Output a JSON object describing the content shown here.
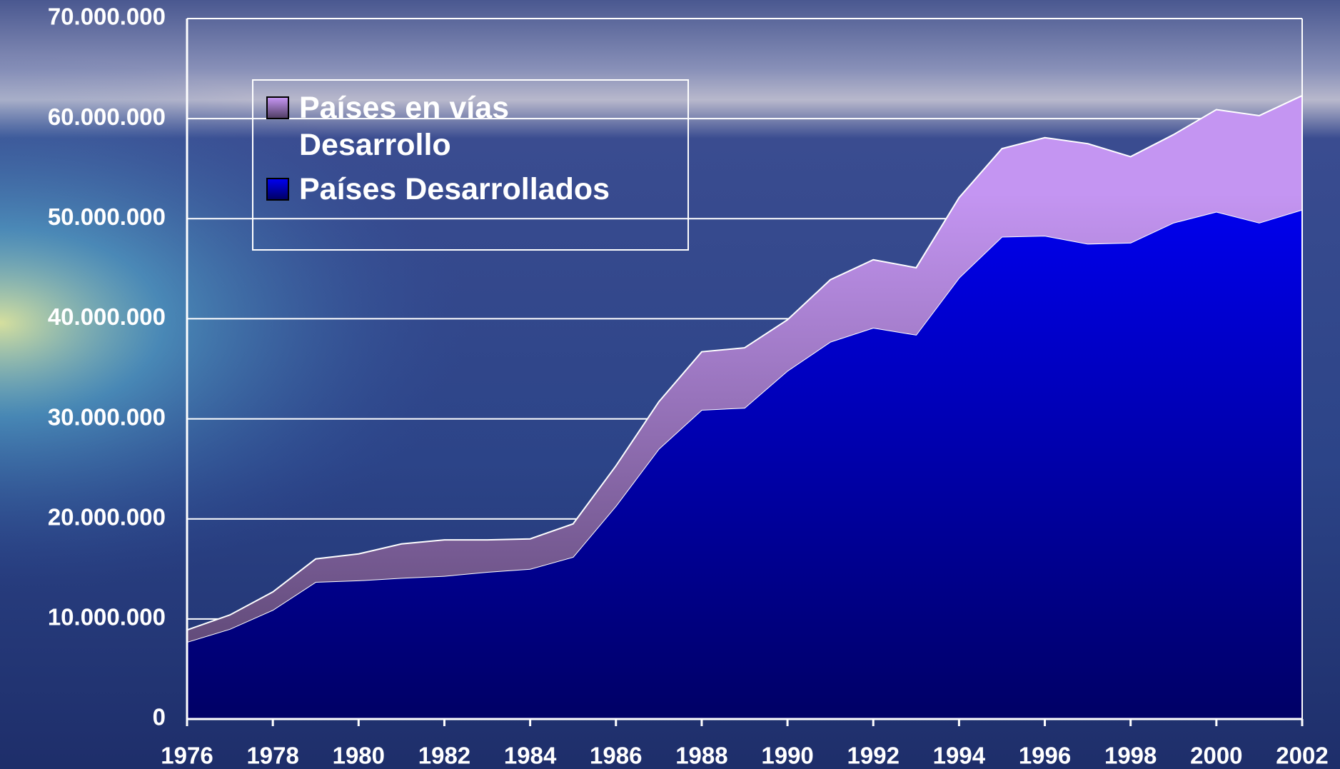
{
  "chart_data": {
    "type": "stacked_area",
    "x": [
      1976,
      1977,
      1978,
      1979,
      1980,
      1981,
      1982,
      1983,
      1984,
      1985,
      1986,
      1987,
      1988,
      1989,
      1990,
      1991,
      1992,
      1993,
      1994,
      1995,
      1996,
      1997,
      1998,
      1999,
      2000,
      2001,
      2002
    ],
    "series": [
      {
        "name": "Países Desarrollados",
        "color": "#0000f0",
        "values": [
          7700000,
          9000000,
          10900000,
          13700000,
          13850000,
          14100000,
          14300000,
          14700000,
          15000000,
          16200000,
          21300000,
          27000000,
          30900000,
          31100000,
          34800000,
          37700000,
          39100000,
          38400000,
          44100000,
          48200000,
          48300000,
          47500000,
          47600000,
          49600000,
          50700000,
          49600000,
          50900000
        ]
      },
      {
        "name": "Países en vías Desarrollo",
        "color": "#c495f2",
        "values": [
          1200000,
          1400000,
          1800000,
          2300000,
          2650000,
          3400000,
          3600000,
          3200000,
          3000000,
          3300000,
          4000000,
          4700000,
          5800000,
          6000000,
          5100000,
          6200000,
          6800000,
          6700000,
          8000000,
          8800000,
          9800000,
          10000000,
          8600000,
          8800000,
          10200000,
          10700000,
          11400000
        ]
      }
    ],
    "xlim": [
      1976,
      2002
    ],
    "xticks": [
      1976,
      1978,
      1980,
      1982,
      1984,
      1986,
      1988,
      1990,
      1992,
      1994,
      1996,
      1998,
      2000,
      2002
    ],
    "ylim": [
      0,
      70000000
    ],
    "yticks": [
      0,
      {
        "value": 10000000,
        "label": "10.000.000"
      },
      {
        "value": 20000000,
        "label": "20.000.000"
      },
      {
        "value": 30000000,
        "label": "30.000.000"
      },
      {
        "value": 40000000,
        "label": "40.000.000"
      },
      {
        "value": 50000000,
        "label": "50.000.000"
      },
      {
        "value": 60000000,
        "label": "60.000.000"
      },
      {
        "value": 70000000,
        "label": "70.000.000"
      }
    ],
    "grid": true
  }
}
